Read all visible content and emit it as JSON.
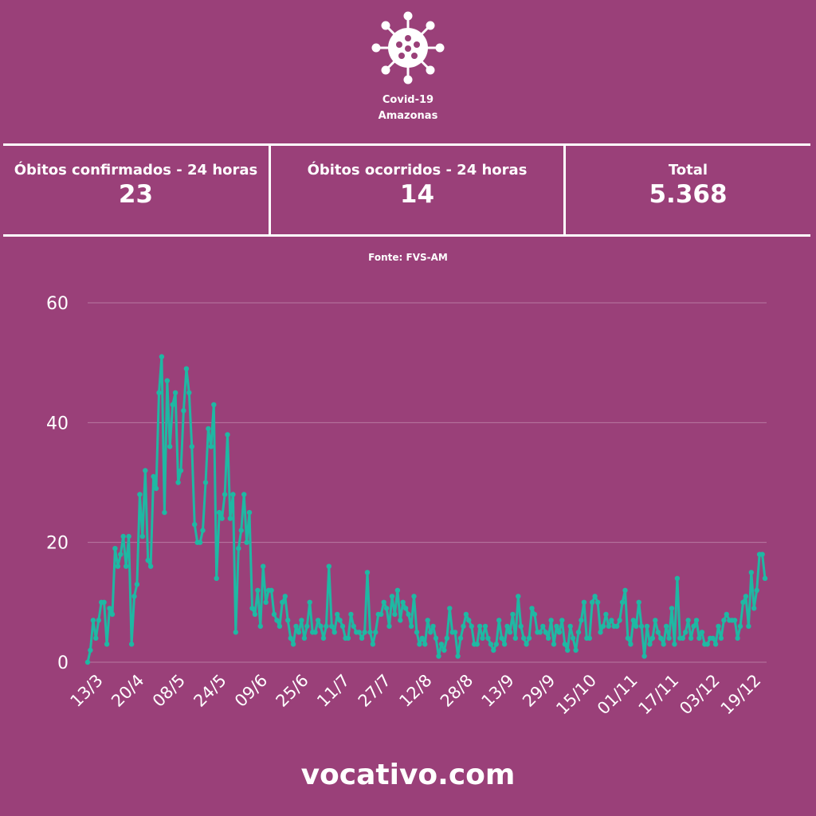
{
  "header": {
    "icon": "virus-icon",
    "title_line1": "Covid-19",
    "title_line2": "Amazonas"
  },
  "stats": [
    {
      "label": "Óbitos confirmados - 24 horas",
      "value": "23"
    },
    {
      "label": "Óbitos ocorridos - 24 horas",
      "value": "14"
    },
    {
      "label": "Total",
      "value": "5.368"
    }
  ],
  "source": "Fonte: FVS-AM",
  "footer": "vocativo.com",
  "colors": {
    "background": "#9a4079",
    "line": "#1fb8a3",
    "text": "#ffffff"
  },
  "chart_data": {
    "type": "line",
    "title": "",
    "xlabel": "",
    "ylabel": "",
    "ylim": [
      0,
      60
    ],
    "yticks": [
      0,
      20,
      40,
      60
    ],
    "grid": true,
    "x_tick_labels": [
      "13/3",
      "20/4",
      "08/5",
      "24/5",
      "09/6",
      "25/6",
      "11/7",
      "27/7",
      "12/8",
      "28/8",
      "13/9",
      "29/9",
      "15/10",
      "01/11",
      "17/11",
      "03/12",
      "19/12"
    ],
    "series": [
      {
        "values": [
          0,
          2,
          7,
          4,
          7,
          10,
          10,
          3,
          9,
          8,
          19,
          16,
          18,
          21,
          16,
          21,
          3,
          11,
          13,
          28,
          21,
          32,
          17,
          16,
          31,
          29,
          45,
          51,
          25,
          47,
          36,
          43,
          45,
          30,
          32,
          42,
          49,
          45,
          36,
          23,
          20,
          20,
          22,
          30,
          39,
          36,
          43,
          14,
          25,
          24,
          28,
          38,
          24,
          28,
          5,
          19,
          22,
          28,
          20,
          25,
          9,
          8,
          12,
          6,
          16,
          10,
          12,
          12,
          8,
          7,
          6,
          10,
          11,
          7,
          4,
          3,
          6,
          5,
          7,
          4,
          6,
          10,
          5,
          5,
          7,
          6,
          4,
          6,
          16,
          6,
          5,
          8,
          7,
          6,
          4,
          4,
          8,
          6,
          5,
          5,
          4,
          5,
          15,
          5,
          3,
          5,
          8,
          8,
          10,
          9,
          6,
          11,
          8,
          12,
          7,
          10,
          9,
          8,
          6,
          11,
          5,
          3,
          4,
          3,
          7,
          5,
          6,
          4,
          1,
          3,
          2,
          4,
          9,
          5,
          5,
          1,
          4,
          6,
          8,
          7,
          6,
          3,
          3,
          6,
          4,
          6,
          4,
          3,
          2,
          3,
          7,
          4,
          3,
          6,
          5,
          8,
          4,
          11,
          6,
          4,
          3,
          4,
          9,
          8,
          5,
          5,
          6,
          5,
          4,
          7,
          3,
          6,
          5,
          7,
          3,
          2,
          6,
          4,
          2,
          5,
          7,
          10,
          4,
          4,
          10,
          11,
          10,
          5,
          6,
          8,
          6,
          7,
          6,
          6,
          7,
          10,
          12,
          4,
          3,
          7,
          6,
          10,
          6,
          1,
          6,
          3,
          4,
          7,
          5,
          4,
          3,
          6,
          4,
          9,
          3,
          14,
          4,
          4,
          5,
          7,
          4,
          6,
          7,
          4,
          5,
          3,
          3,
          4,
          4,
          3,
          6,
          4,
          7,
          8,
          7,
          7,
          7,
          4,
          6,
          10,
          11,
          6,
          15,
          9,
          12,
          18,
          18,
          14
        ]
      }
    ]
  }
}
